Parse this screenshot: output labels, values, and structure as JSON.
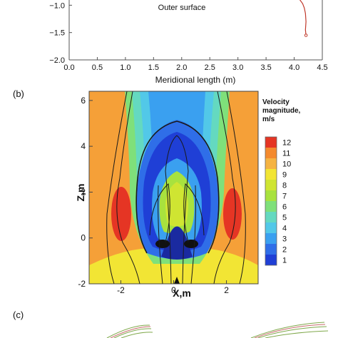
{
  "chart_data": [
    {
      "type": "line",
      "panel": "",
      "annotation": "Outer surface",
      "xlabel": "Meridional length (m)",
      "ylabel": "",
      "xlim": [
        0,
        4.5
      ],
      "ylim": [
        -2.0,
        -0.8
      ],
      "xticks": [
        "0.0",
        "0.5",
        "1.0",
        "1.5",
        "2.0",
        "2.5",
        "3.0",
        "3.5",
        "4.0",
        "4.5"
      ],
      "yticks": [
        "-1.0",
        "-1.5",
        "-2.0"
      ],
      "series": [
        {
          "color": "#c0392b",
          "x": [
            4.05,
            4.1,
            4.15,
            4.18,
            4.2,
            4.21,
            4.2,
            4.21
          ],
          "y": [
            -0.85,
            -0.9,
            -0.97,
            -1.05,
            -1.15,
            -1.3,
            -1.45,
            -1.55
          ]
        }
      ]
    },
    {
      "type": "heatmap",
      "panel": "(b)",
      "xlabel": "X,m",
      "ylabel": "Z,m",
      "xlim": [
        -3.2,
        3.2
      ],
      "ylim": [
        -2,
        6.4
      ],
      "xticks": [
        "-2",
        "0",
        "2"
      ],
      "yticks": [
        "-2",
        "0",
        "2",
        "4",
        "6"
      ],
      "colorbar": {
        "title_lines": [
          "Velocity",
          "magnitude,",
          "m/s"
        ],
        "levels": [
          "1",
          "2",
          "3",
          "4",
          "5",
          "6",
          "7",
          "8",
          "9",
          "10",
          "11",
          "12"
        ],
        "colors": [
          "#1f3fd6",
          "#2f6ee8",
          "#3aa0f0",
          "#52c8e8",
          "#64d9c0",
          "#7fe07a",
          "#a8e23e",
          "#cfe532",
          "#f2e534",
          "#f5b342",
          "#f48a2e",
          "#e53524"
        ]
      }
    },
    {
      "type": "other",
      "panel": "(c)"
    }
  ]
}
